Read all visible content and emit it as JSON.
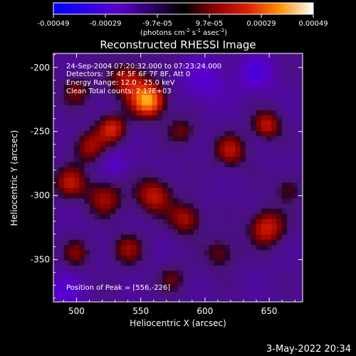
{
  "chart_data": {
    "type": "heatmap",
    "title": "Reconstructed RHESSI Image",
    "xlabel": "Heliocentric X (arcsec)",
    "ylabel": "Heliocentric Y (arcsec)",
    "xlim": [
      482,
      676
    ],
    "ylim": [
      -383,
      -189
    ],
    "x_ticks": [
      500,
      550,
      600,
      650
    ],
    "y_ticks": [
      -200,
      -250,
      -300,
      -350
    ],
    "colorbar": {
      "ticks": [
        "-0.00049",
        "-0.00029",
        "-9.7e-05",
        "9.7e-05",
        "0.00029",
        "0.00049"
      ],
      "unit": "(photons cm",
      "unit_sup1": "-2",
      "unit_mid": " s",
      "unit_sup2": "-1",
      "unit_end": " asec",
      "unit_sup3": "-2",
      "unit_close": ")",
      "range": [
        -0.00049,
        0.00049
      ]
    },
    "annotations": [
      "24-Sep-2004 07:20:32.000 to 07:23:24.000",
      "Detectors: 3F 4F 5F 6F 7F 8F, Att 0",
      "Energy Range: 12.0 - 25.0 keV",
      "Clean     Total counts: 2.17E+03"
    ],
    "peak_label": "Position of Peak = [556,-226]",
    "peak": [
      556,
      -226
    ],
    "sources": [
      {
        "x": 556,
        "y": -226,
        "amp": 1.0,
        "sigma": 9
      },
      {
        "x": 540,
        "y": -210,
        "amp": 0.55,
        "sigma": 10
      },
      {
        "x": 528,
        "y": -248,
        "amp": 0.6,
        "sigma": 8
      },
      {
        "x": 510,
        "y": -262,
        "amp": 0.45,
        "sigma": 9
      },
      {
        "x": 495,
        "y": -290,
        "amp": 0.5,
        "sigma": 9
      },
      {
        "x": 522,
        "y": -302,
        "amp": 0.45,
        "sigma": 10
      },
      {
        "x": 560,
        "y": -300,
        "amp": 0.55,
        "sigma": 10
      },
      {
        "x": 585,
        "y": -318,
        "amp": 0.5,
        "sigma": 9
      },
      {
        "x": 582,
        "y": -250,
        "amp": 0.35,
        "sigma": 8
      },
      {
        "x": 620,
        "y": -265,
        "amp": 0.5,
        "sigma": 9
      },
      {
        "x": 648,
        "y": -245,
        "amp": 0.55,
        "sigma": 8
      },
      {
        "x": 648,
        "y": -325,
        "amp": 0.6,
        "sigma": 10
      },
      {
        "x": 612,
        "y": -345,
        "amp": 0.35,
        "sigma": 9
      },
      {
        "x": 540,
        "y": -342,
        "amp": 0.4,
        "sigma": 9
      },
      {
        "x": 500,
        "y": -345,
        "amp": 0.35,
        "sigma": 8
      },
      {
        "x": 500,
        "y": -218,
        "amp": 0.35,
        "sigma": 9
      },
      {
        "x": 575,
        "y": -365,
        "amp": 0.3,
        "sigma": 8
      },
      {
        "x": 665,
        "y": -295,
        "amp": 0.3,
        "sigma": 8
      },
      {
        "x": 600,
        "y": -210,
        "amp": -0.3,
        "sigma": 12
      },
      {
        "x": 640,
        "y": -205,
        "amp": -0.35,
        "sigma": 10
      },
      {
        "x": 530,
        "y": -275,
        "amp": -0.25,
        "sigma": 8
      },
      {
        "x": 490,
        "y": -375,
        "amp": -0.3,
        "sigma": 10
      }
    ]
  },
  "footer": {
    "date": "3-May-2022 20:34"
  }
}
